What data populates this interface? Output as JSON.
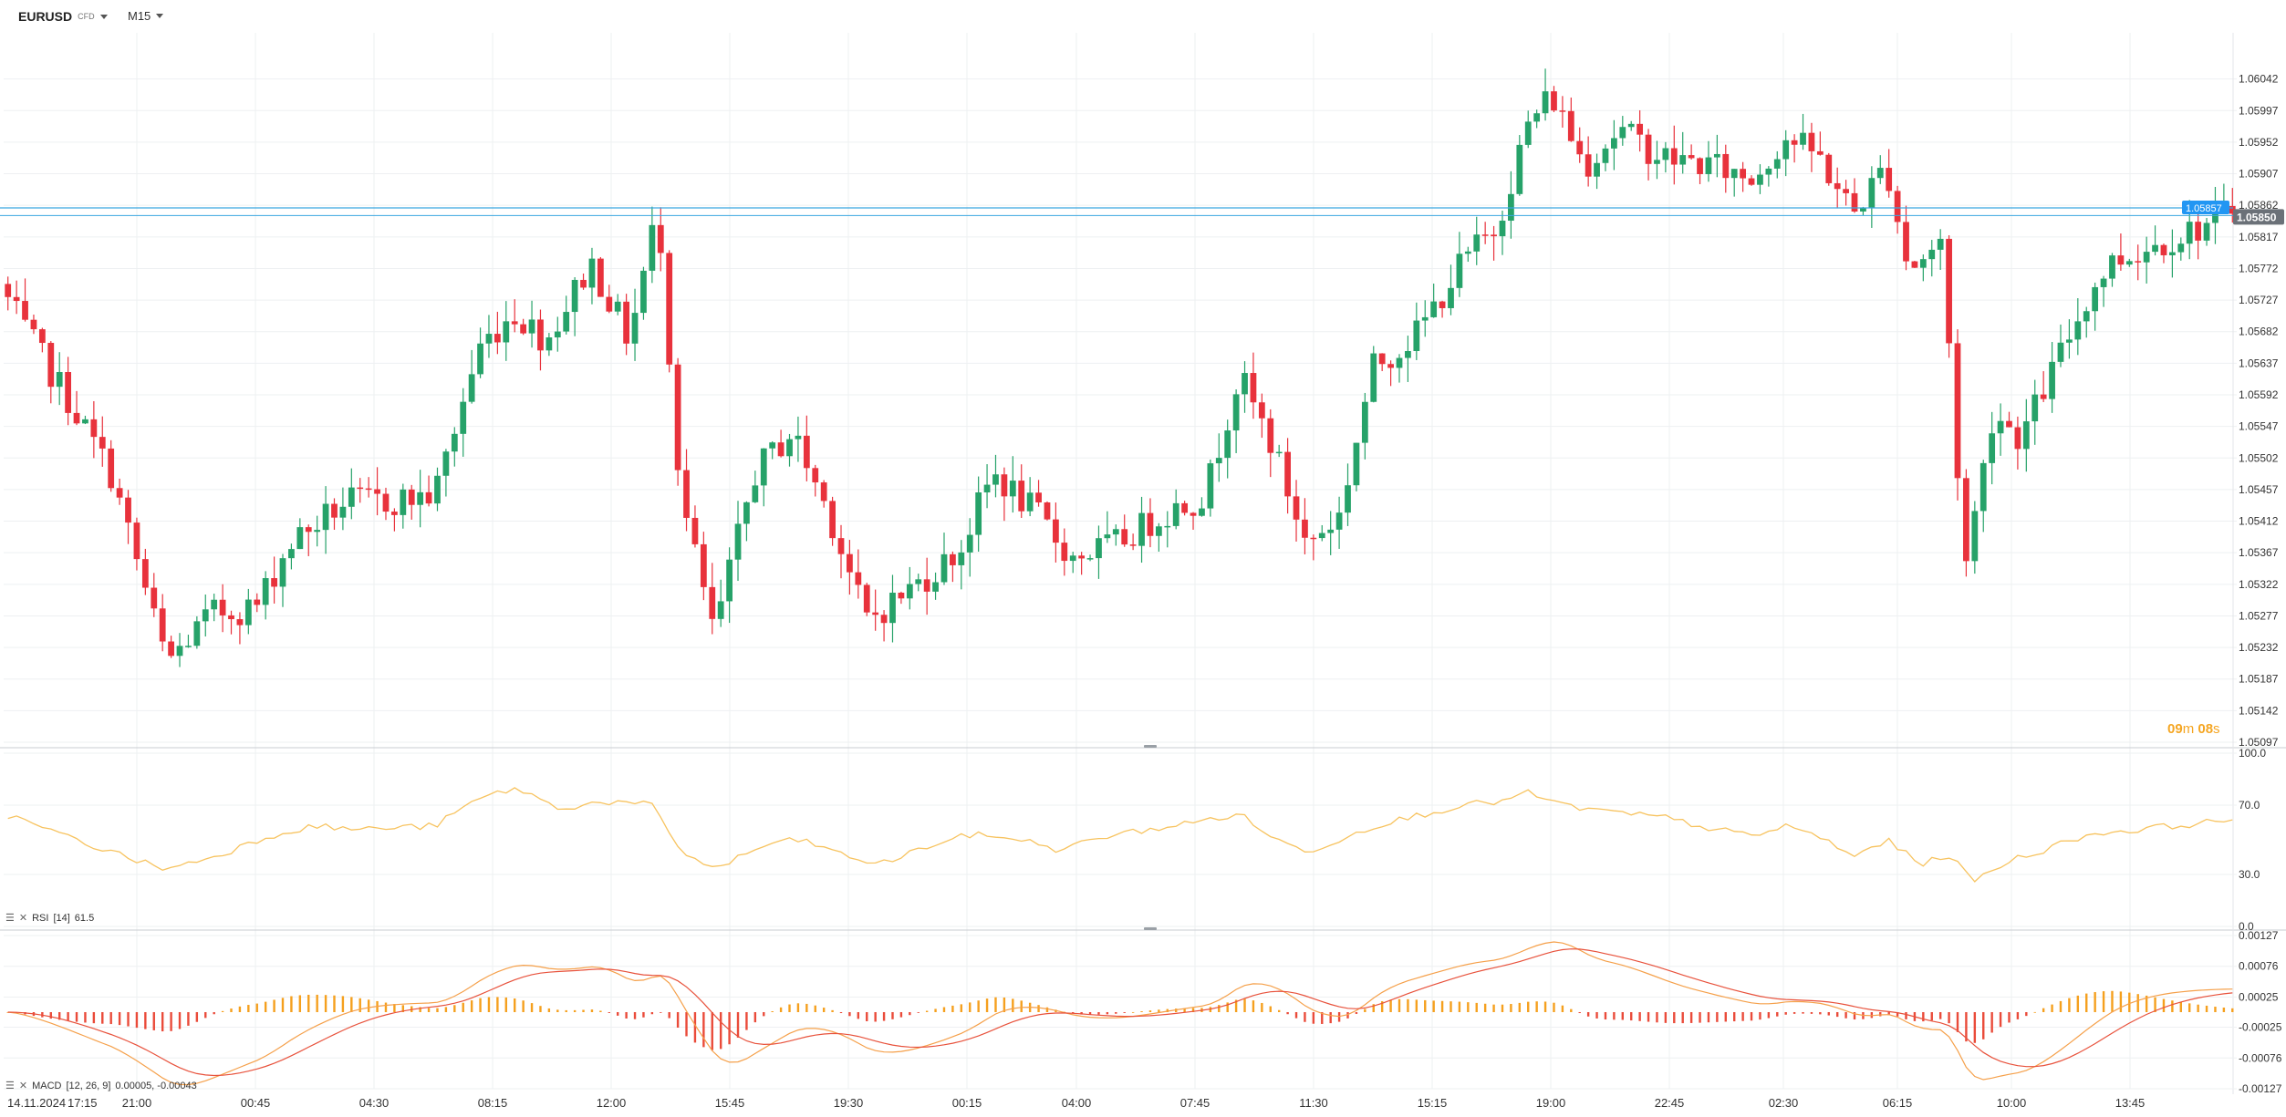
{
  "header": {
    "symbol": "EURUSD",
    "symbol_type": "CFD",
    "timeframe": "M15"
  },
  "colors": {
    "bull": "#26a269",
    "bear": "#e8323c",
    "level_line": "#3aa6e0",
    "price_badge": "#6b7178",
    "level_badge": "#2196f3",
    "rsi": "#f7c35f",
    "macd_line": "#f5a04a",
    "signal_line": "#e8523c",
    "hist_pos": "#f5a01e",
    "hist_neg": "#ea4b3a",
    "grid": "#eef0f2"
  },
  "price_axis": {
    "ticks": [
      "1.06042",
      "1.05997",
      "1.05952",
      "1.05907",
      "1.05862",
      "1.05817",
      "1.05772",
      "1.05727",
      "1.05682",
      "1.05637",
      "1.05592",
      "1.05547",
      "1.05502",
      "1.05457",
      "1.05412",
      "1.05367",
      "1.05322",
      "1.05277",
      "1.05232",
      "1.05187",
      "1.05142",
      "1.05097"
    ],
    "level_label": "1.05857",
    "current_label": "1.05850"
  },
  "countdown": {
    "min": "09",
    "min_unit": "m",
    "sec": "08",
    "sec_unit": "s"
  },
  "time_axis": {
    "labels": [
      "14.11.2024",
      "17:15",
      "21:00",
      "00:45",
      "04:30",
      "08:15",
      "12:00",
      "15:45",
      "19:30",
      "00:15",
      "04:00",
      "07:45",
      "11:30",
      "15:15",
      "19:00",
      "22:45",
      "02:30",
      "06:15",
      "10:00",
      "13:45"
    ]
  },
  "rsi": {
    "legend_name": "RSI",
    "legend_params": "[14]",
    "legend_value": "61.5",
    "ticks": [
      "100.0",
      "70.0",
      "30.0",
      "0.0"
    ]
  },
  "macd": {
    "legend_name": "MACD",
    "legend_params": "[12, 26, 9]",
    "legend_values": "0.00005, -0.00043",
    "ticks": [
      "0.00127",
      "0.00076",
      "0.00025",
      "-0.00025",
      "-0.00076",
      "-0.00127"
    ]
  },
  "chart_data": {
    "type": "candlestick",
    "instrument": "EURUSD",
    "timeframe": "M15",
    "ylim": [
      1.05097,
      1.06087
    ],
    "horizontal_levels": [
      1.05857
    ],
    "last_price": 1.0585,
    "anchors": [
      {
        "x": 0,
        "v": 1.0575
      },
      {
        "x": 0.01,
        "v": 1.0569
      },
      {
        "x": 0.03,
        "v": 1.0559
      },
      {
        "x": 0.05,
        "v": 1.0548
      },
      {
        "x": 0.075,
        "v": 1.0521
      },
      {
        "x": 0.095,
        "v": 1.0528
      },
      {
        "x": 0.115,
        "v": 1.0529
      },
      {
        "x": 0.13,
        "v": 1.0538
      },
      {
        "x": 0.155,
        "v": 1.0544
      },
      {
        "x": 0.175,
        "v": 1.0544
      },
      {
        "x": 0.195,
        "v": 1.0545
      },
      {
        "x": 0.215,
        "v": 1.0566
      },
      {
        "x": 0.23,
        "v": 1.0571
      },
      {
        "x": 0.245,
        "v": 1.0567
      },
      {
        "x": 0.265,
        "v": 1.0578
      },
      {
        "x": 0.282,
        "v": 1.0567
      },
      {
        "x": 0.295,
        "v": 1.0586
      },
      {
        "x": 0.305,
        "v": 1.0545
      },
      {
        "x": 0.32,
        "v": 1.0525
      },
      {
        "x": 0.338,
        "v": 1.0548
      },
      {
        "x": 0.355,
        "v": 1.0554
      },
      {
        "x": 0.372,
        "v": 1.0542
      },
      {
        "x": 0.388,
        "v": 1.0527
      },
      {
        "x": 0.41,
        "v": 1.0532
      },
      {
        "x": 0.43,
        "v": 1.0537
      },
      {
        "x": 0.445,
        "v": 1.0548
      },
      {
        "x": 0.465,
        "v": 1.0542
      },
      {
        "x": 0.48,
        "v": 1.0536
      },
      {
        "x": 0.5,
        "v": 1.0538
      },
      {
        "x": 0.52,
        "v": 1.0542
      },
      {
        "x": 0.54,
        "v": 1.0545
      },
      {
        "x": 0.555,
        "v": 1.0562
      },
      {
        "x": 0.57,
        "v": 1.0552
      },
      {
        "x": 0.585,
        "v": 1.0538
      },
      {
        "x": 0.6,
        "v": 1.0542
      },
      {
        "x": 0.615,
        "v": 1.0563
      },
      {
        "x": 0.635,
        "v": 1.0568
      },
      {
        "x": 0.655,
        "v": 1.0578
      },
      {
        "x": 0.67,
        "v": 1.0583
      },
      {
        "x": 0.685,
        "v": 1.0598
      },
      {
        "x": 0.695,
        "v": 1.0602
      },
      {
        "x": 0.71,
        "v": 1.0592
      },
      {
        "x": 0.725,
        "v": 1.0597
      },
      {
        "x": 0.745,
        "v": 1.0593
      },
      {
        "x": 0.765,
        "v": 1.0592
      },
      {
        "x": 0.785,
        "v": 1.059
      },
      {
        "x": 0.8,
        "v": 1.0596
      },
      {
        "x": 0.815,
        "v": 1.0593
      },
      {
        "x": 0.83,
        "v": 1.0585
      },
      {
        "x": 0.845,
        "v": 1.0592
      },
      {
        "x": 0.855,
        "v": 1.0577
      },
      {
        "x": 0.87,
        "v": 1.0581
      },
      {
        "x": 0.88,
        "v": 1.0534
      },
      {
        "x": 0.893,
        "v": 1.0557
      },
      {
        "x": 0.905,
        "v": 1.0553
      },
      {
        "x": 0.92,
        "v": 1.0563
      },
      {
        "x": 0.935,
        "v": 1.0573
      },
      {
        "x": 0.945,
        "v": 1.0578
      },
      {
        "x": 1,
        "v": 1.0585
      }
    ],
    "candle_count": 260,
    "rsi_series": {
      "name": "RSI [14]",
      "last": 61.5,
      "ylim": [
        0,
        100
      ],
      "anchors": [
        {
          "x": 0,
          "v": 66
        },
        {
          "x": 0.03,
          "v": 52
        },
        {
          "x": 0.057,
          "v": 40
        },
        {
          "x": 0.075,
          "v": 33
        },
        {
          "x": 0.1,
          "v": 42
        },
        {
          "x": 0.12,
          "v": 52
        },
        {
          "x": 0.14,
          "v": 58
        },
        {
          "x": 0.16,
          "v": 56
        },
        {
          "x": 0.195,
          "v": 58
        },
        {
          "x": 0.215,
          "v": 74
        },
        {
          "x": 0.232,
          "v": 80
        },
        {
          "x": 0.25,
          "v": 68
        },
        {
          "x": 0.27,
          "v": 72
        },
        {
          "x": 0.292,
          "v": 70
        },
        {
          "x": 0.305,
          "v": 44
        },
        {
          "x": 0.32,
          "v": 33
        },
        {
          "x": 0.345,
          "v": 48
        },
        {
          "x": 0.36,
          "v": 50
        },
        {
          "x": 0.38,
          "v": 40
        },
        {
          "x": 0.395,
          "v": 36
        },
        {
          "x": 0.415,
          "v": 46
        },
        {
          "x": 0.435,
          "v": 53
        },
        {
          "x": 0.455,
          "v": 51
        },
        {
          "x": 0.475,
          "v": 44
        },
        {
          "x": 0.495,
          "v": 52
        },
        {
          "x": 0.515,
          "v": 56
        },
        {
          "x": 0.535,
          "v": 60
        },
        {
          "x": 0.555,
          "v": 65
        },
        {
          "x": 0.572,
          "v": 50
        },
        {
          "x": 0.585,
          "v": 43
        },
        {
          "x": 0.6,
          "v": 50
        },
        {
          "x": 0.615,
          "v": 58
        },
        {
          "x": 0.635,
          "v": 64
        },
        {
          "x": 0.655,
          "v": 70
        },
        {
          "x": 0.672,
          "v": 72
        },
        {
          "x": 0.685,
          "v": 77
        },
        {
          "x": 0.7,
          "v": 70
        },
        {
          "x": 0.72,
          "v": 66
        },
        {
          "x": 0.745,
          "v": 63
        },
        {
          "x": 0.765,
          "v": 57
        },
        {
          "x": 0.785,
          "v": 52
        },
        {
          "x": 0.8,
          "v": 58
        },
        {
          "x": 0.815,
          "v": 52
        },
        {
          "x": 0.83,
          "v": 40
        },
        {
          "x": 0.845,
          "v": 50
        },
        {
          "x": 0.86,
          "v": 36
        },
        {
          "x": 0.875,
          "v": 42
        },
        {
          "x": 0.883,
          "v": 25
        },
        {
          "x": 0.9,
          "v": 38
        },
        {
          "x": 0.915,
          "v": 44
        },
        {
          "x": 0.935,
          "v": 53
        },
        {
          "x": 1,
          "v": 61.5
        }
      ]
    },
    "macd_series": {
      "name": "MACD [12, 26, 9]",
      "macd_last": 5e-05,
      "signal_last": -0.00043,
      "ylim": [
        -0.00127,
        0.00127
      ]
    }
  }
}
